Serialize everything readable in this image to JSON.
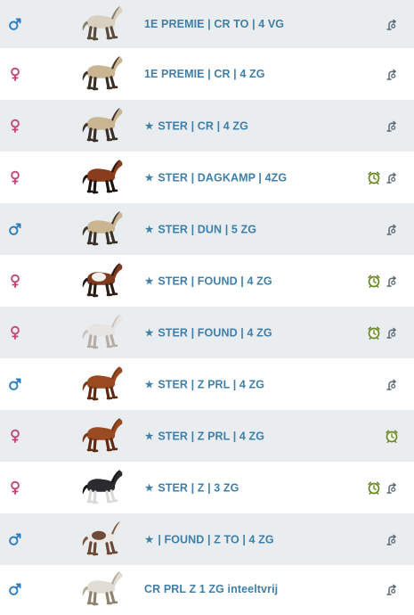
{
  "colors": {
    "row_alt": "#e9edf0",
    "link": "#3f7fa8",
    "male": "#2f7fbf",
    "female": "#c0487a",
    "alarm": "#6a8a28"
  },
  "horses": [
    {
      "gender": "male",
      "star": false,
      "name": "1E PREMIE | CR TO | 4 VG",
      "coat": "pale-roan",
      "alarm": false,
      "breed": true
    },
    {
      "gender": "female",
      "star": false,
      "name": "1E PREMIE | CR | 4 ZG",
      "coat": "dun",
      "alarm": false,
      "breed": true
    },
    {
      "gender": "female",
      "star": true,
      "name": "STER | CR | 4 ZG",
      "coat": "dun",
      "alarm": false,
      "breed": true
    },
    {
      "gender": "female",
      "star": true,
      "name": "STER | DAGKAMP | 4ZG",
      "coat": "bay",
      "alarm": true,
      "breed": true
    },
    {
      "gender": "male",
      "star": true,
      "name": "STER | DUN | 5 ZG",
      "coat": "dun",
      "alarm": false,
      "breed": true
    },
    {
      "gender": "female",
      "star": true,
      "name": "STER | FOUND | 4 ZG",
      "coat": "pinto-bay",
      "alarm": true,
      "breed": true
    },
    {
      "gender": "female",
      "star": true,
      "name": "STER | FOUND | 4 ZG",
      "coat": "grey",
      "alarm": true,
      "breed": true
    },
    {
      "gender": "male",
      "star": true,
      "name": "STER | Z PRL | 4 ZG",
      "coat": "chestnut",
      "alarm": false,
      "breed": true
    },
    {
      "gender": "female",
      "star": true,
      "name": "STER | Z PRL | 4 ZG",
      "coat": "chestnut",
      "alarm": true,
      "breed": false
    },
    {
      "gender": "female",
      "star": true,
      "name": "STER | Z | 3 ZG",
      "coat": "black",
      "alarm": true,
      "breed": true
    },
    {
      "gender": "male",
      "star": true,
      "name": "| FOUND | Z TO | 4 ZG",
      "coat": "pinto-grey",
      "alarm": false,
      "breed": true
    },
    {
      "gender": "male",
      "star": false,
      "name": "CR PRL Z 1 ZG inteeltvrij",
      "coat": "pale",
      "alarm": false,
      "breed": true
    }
  ],
  "icons": {
    "male": "male-symbol-icon",
    "female": "female-symbol-icon",
    "alarm": "alarm-clock-icon",
    "breed": "cover-breed-icon",
    "star": "star-icon"
  }
}
